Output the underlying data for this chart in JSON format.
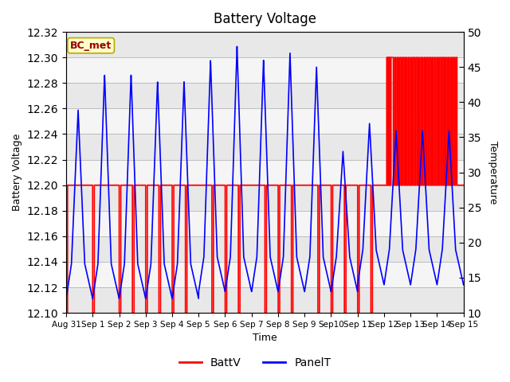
{
  "title": "Battery Voltage",
  "xlabel": "Time",
  "ylabel_left": "Battery Voltage",
  "ylabel_right": "Temperature",
  "left_ylim": [
    12.1,
    12.32
  ],
  "right_ylim": [
    10,
    50
  ],
  "left_yticks": [
    12.1,
    12.12,
    12.14,
    12.16,
    12.18,
    12.2,
    12.22,
    12.24,
    12.26,
    12.28,
    12.3,
    12.32
  ],
  "right_yticks": [
    10,
    15,
    20,
    25,
    30,
    35,
    40,
    45,
    50
  ],
  "annotation_text": "BC_met",
  "annotation_bg": "#ffffcc",
  "annotation_border": "#bbaa00",
  "batt_color": "#ff0000",
  "panel_color": "#0000ff",
  "plot_bg": "#ffffff",
  "band_colors": [
    "#e8e8e8",
    "#f5f5f5"
  ],
  "xtick_labels": [
    "Aug 31",
    "Sep 1",
    "Sep 2",
    "Sep 3",
    "Sep 4",
    "Sep 5",
    "Sep 6",
    "Sep 7",
    "Sep 8",
    "Sep 9",
    "Sep10",
    "Sep 11",
    "Sep 12",
    "Sep 13",
    "Sep 14",
    "Sep 15"
  ],
  "legend_labels": [
    "BattV",
    "PanelT"
  ]
}
